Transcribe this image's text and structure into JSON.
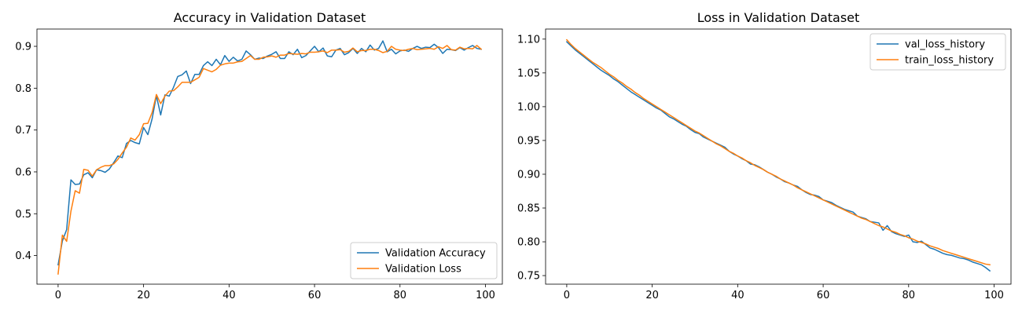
{
  "chart_data": [
    {
      "type": "line",
      "title": "Accuracy in Validation Dataset",
      "xlabel": "",
      "ylabel": "",
      "xlim": [
        -4.95,
        103.95
      ],
      "ylim": [
        0.3317,
        0.9413
      ],
      "xticks": [
        0,
        20,
        40,
        60,
        80,
        100
      ],
      "yticks": [
        0.4,
        0.5,
        0.6,
        0.7,
        0.8,
        0.9
      ],
      "yticklabels": [
        "0.4",
        "0.5",
        "0.6",
        "0.7",
        "0.8",
        "0.9"
      ],
      "grid": false,
      "legend_position": "lower-right",
      "x": [
        0,
        1,
        2,
        3,
        4,
        5,
        6,
        7,
        8,
        9,
        10,
        11,
        12,
        13,
        14,
        15,
        16,
        17,
        18,
        19,
        20,
        21,
        22,
        23,
        24,
        25,
        26,
        27,
        28,
        29,
        30,
        31,
        32,
        33,
        34,
        35,
        36,
        37,
        38,
        39,
        40,
        41,
        42,
        43,
        44,
        45,
        46,
        47,
        48,
        49,
        50,
        51,
        52,
        53,
        54,
        55,
        56,
        57,
        58,
        59,
        60,
        61,
        62,
        63,
        64,
        65,
        66,
        67,
        68,
        69,
        70,
        71,
        72,
        73,
        74,
        75,
        76,
        77,
        78,
        79,
        80,
        81,
        82,
        83,
        84,
        85,
        86,
        87,
        88,
        89,
        90,
        91,
        92,
        93,
        94,
        95,
        96,
        97,
        98,
        99
      ],
      "series": [
        {
          "name": "Validation Accuracy",
          "color": "#1f77b4",
          "values": [
            0.378,
            0.435,
            0.462,
            0.581,
            0.57,
            0.571,
            0.593,
            0.598,
            0.586,
            0.605,
            0.603,
            0.599,
            0.607,
            0.622,
            0.638,
            0.634,
            0.668,
            0.675,
            0.67,
            0.667,
            0.706,
            0.689,
            0.727,
            0.782,
            0.736,
            0.784,
            0.781,
            0.802,
            0.828,
            0.832,
            0.841,
            0.811,
            0.833,
            0.833,
            0.854,
            0.863,
            0.854,
            0.869,
            0.856,
            0.878,
            0.864,
            0.874,
            0.865,
            0.869,
            0.889,
            0.88,
            0.869,
            0.872,
            0.871,
            0.877,
            0.881,
            0.887,
            0.871,
            0.871,
            0.887,
            0.88,
            0.893,
            0.873,
            0.878,
            0.889,
            0.9,
            0.887,
            0.896,
            0.877,
            0.875,
            0.891,
            0.895,
            0.88,
            0.885,
            0.895,
            0.883,
            0.895,
            0.887,
            0.903,
            0.891,
            0.895,
            0.913,
            0.887,
            0.893,
            0.882,
            0.889,
            0.891,
            0.888,
            0.895,
            0.9,
            0.895,
            0.898,
            0.897,
            0.905,
            0.897,
            0.883,
            0.893,
            0.892,
            0.89,
            0.897,
            0.891,
            0.897,
            0.902,
            0.895,
            0.893
          ]
        },
        {
          "name": "Validation Loss",
          "color": "#ff7f0e",
          "values": [
            0.356,
            0.449,
            0.434,
            0.506,
            0.555,
            0.549,
            0.606,
            0.604,
            0.59,
            0.605,
            0.611,
            0.615,
            0.615,
            0.619,
            0.63,
            0.645,
            0.659,
            0.681,
            0.676,
            0.689,
            0.715,
            0.716,
            0.742,
            0.785,
            0.763,
            0.781,
            0.793,
            0.794,
            0.803,
            0.814,
            0.814,
            0.814,
            0.82,
            0.826,
            0.847,
            0.843,
            0.839,
            0.845,
            0.855,
            0.858,
            0.86,
            0.86,
            0.863,
            0.864,
            0.871,
            0.878,
            0.869,
            0.869,
            0.874,
            0.875,
            0.877,
            0.874,
            0.879,
            0.879,
            0.883,
            0.882,
            0.881,
            0.883,
            0.882,
            0.886,
            0.886,
            0.887,
            0.889,
            0.885,
            0.891,
            0.891,
            0.892,
            0.886,
            0.888,
            0.896,
            0.887,
            0.89,
            0.89,
            0.893,
            0.893,
            0.89,
            0.885,
            0.888,
            0.9,
            0.893,
            0.891,
            0.89,
            0.893,
            0.895,
            0.892,
            0.893,
            0.894,
            0.895,
            0.893,
            0.899,
            0.895,
            0.902,
            0.892,
            0.891,
            0.898,
            0.894,
            0.895,
            0.894,
            0.902,
            0.893
          ]
        }
      ]
    },
    {
      "type": "line",
      "title": "Loss in Validation Dataset",
      "xlabel": "",
      "ylabel": "",
      "xlim": [
        -4.95,
        103.95
      ],
      "ylim": [
        0.7373,
        1.1149
      ],
      "xticks": [
        0,
        20,
        40,
        60,
        80,
        100
      ],
      "yticks": [
        0.75,
        0.8,
        0.85,
        0.9,
        0.95,
        1.0,
        1.05,
        1.1
      ],
      "yticklabels": [
        "0.75",
        "0.80",
        "0.85",
        "0.90",
        "0.95",
        "1.00",
        "1.05",
        "1.10"
      ],
      "grid": false,
      "legend_position": "upper-right",
      "x": [
        0,
        1,
        2,
        3,
        4,
        5,
        6,
        7,
        8,
        9,
        10,
        11,
        12,
        13,
        14,
        15,
        16,
        17,
        18,
        19,
        20,
        21,
        22,
        23,
        24,
        25,
        26,
        27,
        28,
        29,
        30,
        31,
        32,
        33,
        34,
        35,
        36,
        37,
        38,
        39,
        40,
        41,
        42,
        43,
        44,
        45,
        46,
        47,
        48,
        49,
        50,
        51,
        52,
        53,
        54,
        55,
        56,
        57,
        58,
        59,
        60,
        61,
        62,
        63,
        64,
        65,
        66,
        67,
        68,
        69,
        70,
        71,
        72,
        73,
        74,
        75,
        76,
        77,
        78,
        79,
        80,
        81,
        82,
        83,
        84,
        85,
        86,
        87,
        88,
        89,
        90,
        91,
        92,
        93,
        94,
        95,
        96,
        97,
        98,
        99
      ],
      "series": [
        {
          "name": "val_loss_history",
          "color": "#1f77b4",
          "values": [
            1.096,
            1.09,
            1.084,
            1.079,
            1.074,
            1.069,
            1.064,
            1.059,
            1.054,
            1.05,
            1.046,
            1.041,
            1.037,
            1.032,
            1.027,
            1.022,
            1.018,
            1.014,
            1.01,
            1.006,
            1.002,
            0.998,
            0.995,
            0.99,
            0.985,
            0.982,
            0.978,
            0.974,
            0.971,
            0.966,
            0.962,
            0.96,
            0.955,
            0.952,
            0.949,
            0.946,
            0.943,
            0.94,
            0.934,
            0.93,
            0.927,
            0.923,
            0.92,
            0.915,
            0.914,
            0.911,
            0.907,
            0.903,
            0.9,
            0.896,
            0.893,
            0.889,
            0.887,
            0.884,
            0.882,
            0.877,
            0.873,
            0.87,
            0.869,
            0.867,
            0.862,
            0.86,
            0.858,
            0.854,
            0.851,
            0.848,
            0.846,
            0.844,
            0.838,
            0.836,
            0.834,
            0.83,
            0.829,
            0.828,
            0.817,
            0.824,
            0.815,
            0.812,
            0.81,
            0.808,
            0.81,
            0.8,
            0.799,
            0.801,
            0.796,
            0.791,
            0.789,
            0.786,
            0.783,
            0.781,
            0.78,
            0.778,
            0.776,
            0.775,
            0.773,
            0.77,
            0.768,
            0.766,
            0.762,
            0.757
          ]
        },
        {
          "name": "train_loss_history",
          "color": "#ff7f0e",
          "values": [
            1.099,
            1.092,
            1.086,
            1.081,
            1.076,
            1.071,
            1.066,
            1.062,
            1.058,
            1.053,
            1.048,
            1.044,
            1.039,
            1.035,
            1.03,
            1.026,
            1.021,
            1.017,
            1.012,
            1.008,
            1.004,
            1.0,
            0.996,
            0.992,
            0.988,
            0.984,
            0.98,
            0.976,
            0.972,
            0.968,
            0.964,
            0.961,
            0.957,
            0.953,
            0.949,
            0.945,
            0.942,
            0.938,
            0.934,
            0.931,
            0.927,
            0.924,
            0.92,
            0.917,
            0.913,
            0.91,
            0.907,
            0.903,
            0.9,
            0.897,
            0.893,
            0.89,
            0.887,
            0.884,
            0.88,
            0.877,
            0.874,
            0.871,
            0.868,
            0.865,
            0.862,
            0.859,
            0.856,
            0.853,
            0.85,
            0.847,
            0.844,
            0.841,
            0.838,
            0.835,
            0.833,
            0.83,
            0.827,
            0.824,
            0.822,
            0.819,
            0.816,
            0.814,
            0.811,
            0.809,
            0.806,
            0.804,
            0.801,
            0.799,
            0.797,
            0.794,
            0.792,
            0.79,
            0.787,
            0.785,
            0.783,
            0.781,
            0.779,
            0.777,
            0.775,
            0.773,
            0.771,
            0.769,
            0.767,
            0.766
          ]
        }
      ]
    }
  ]
}
